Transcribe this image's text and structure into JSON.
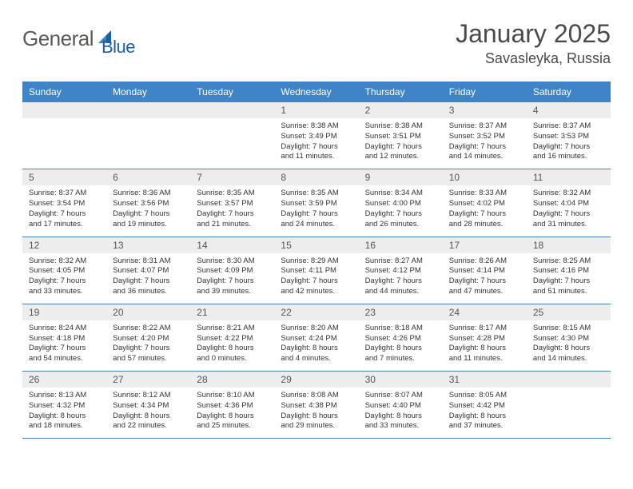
{
  "brand": {
    "name_a": "General",
    "name_b": "Blue"
  },
  "title": "January 2025",
  "location": "Savasleyka, Russia",
  "colors": {
    "header_bg": "#3e84c6",
    "header_text": "#ffffff",
    "daynum_bg": "#ededed",
    "rule": "#3e84c6",
    "logo_gray": "#595959",
    "logo_blue": "#1f5da8"
  },
  "day_labels": [
    "Sunday",
    "Monday",
    "Tuesday",
    "Wednesday",
    "Thursday",
    "Friday",
    "Saturday"
  ],
  "weeks": [
    [
      {
        "n": "",
        "sr": "",
        "ss": "",
        "dl": ""
      },
      {
        "n": "",
        "sr": "",
        "ss": "",
        "dl": ""
      },
      {
        "n": "",
        "sr": "",
        "ss": "",
        "dl": ""
      },
      {
        "n": "1",
        "sr": "Sunrise: 8:38 AM",
        "ss": "Sunset: 3:49 PM",
        "dl": "Daylight: 7 hours and 11 minutes."
      },
      {
        "n": "2",
        "sr": "Sunrise: 8:38 AM",
        "ss": "Sunset: 3:51 PM",
        "dl": "Daylight: 7 hours and 12 minutes."
      },
      {
        "n": "3",
        "sr": "Sunrise: 8:37 AM",
        "ss": "Sunset: 3:52 PM",
        "dl": "Daylight: 7 hours and 14 minutes."
      },
      {
        "n": "4",
        "sr": "Sunrise: 8:37 AM",
        "ss": "Sunset: 3:53 PM",
        "dl": "Daylight: 7 hours and 16 minutes."
      }
    ],
    [
      {
        "n": "5",
        "sr": "Sunrise: 8:37 AM",
        "ss": "Sunset: 3:54 PM",
        "dl": "Daylight: 7 hours and 17 minutes."
      },
      {
        "n": "6",
        "sr": "Sunrise: 8:36 AM",
        "ss": "Sunset: 3:56 PM",
        "dl": "Daylight: 7 hours and 19 minutes."
      },
      {
        "n": "7",
        "sr": "Sunrise: 8:35 AM",
        "ss": "Sunset: 3:57 PM",
        "dl": "Daylight: 7 hours and 21 minutes."
      },
      {
        "n": "8",
        "sr": "Sunrise: 8:35 AM",
        "ss": "Sunset: 3:59 PM",
        "dl": "Daylight: 7 hours and 24 minutes."
      },
      {
        "n": "9",
        "sr": "Sunrise: 8:34 AM",
        "ss": "Sunset: 4:00 PM",
        "dl": "Daylight: 7 hours and 26 minutes."
      },
      {
        "n": "10",
        "sr": "Sunrise: 8:33 AM",
        "ss": "Sunset: 4:02 PM",
        "dl": "Daylight: 7 hours and 28 minutes."
      },
      {
        "n": "11",
        "sr": "Sunrise: 8:32 AM",
        "ss": "Sunset: 4:04 PM",
        "dl": "Daylight: 7 hours and 31 minutes."
      }
    ],
    [
      {
        "n": "12",
        "sr": "Sunrise: 8:32 AM",
        "ss": "Sunset: 4:05 PM",
        "dl": "Daylight: 7 hours and 33 minutes."
      },
      {
        "n": "13",
        "sr": "Sunrise: 8:31 AM",
        "ss": "Sunset: 4:07 PM",
        "dl": "Daylight: 7 hours and 36 minutes."
      },
      {
        "n": "14",
        "sr": "Sunrise: 8:30 AM",
        "ss": "Sunset: 4:09 PM",
        "dl": "Daylight: 7 hours and 39 minutes."
      },
      {
        "n": "15",
        "sr": "Sunrise: 8:29 AM",
        "ss": "Sunset: 4:11 PM",
        "dl": "Daylight: 7 hours and 42 minutes."
      },
      {
        "n": "16",
        "sr": "Sunrise: 8:27 AM",
        "ss": "Sunset: 4:12 PM",
        "dl": "Daylight: 7 hours and 44 minutes."
      },
      {
        "n": "17",
        "sr": "Sunrise: 8:26 AM",
        "ss": "Sunset: 4:14 PM",
        "dl": "Daylight: 7 hours and 47 minutes."
      },
      {
        "n": "18",
        "sr": "Sunrise: 8:25 AM",
        "ss": "Sunset: 4:16 PM",
        "dl": "Daylight: 7 hours and 51 minutes."
      }
    ],
    [
      {
        "n": "19",
        "sr": "Sunrise: 8:24 AM",
        "ss": "Sunset: 4:18 PM",
        "dl": "Daylight: 7 hours and 54 minutes."
      },
      {
        "n": "20",
        "sr": "Sunrise: 8:22 AM",
        "ss": "Sunset: 4:20 PM",
        "dl": "Daylight: 7 hours and 57 minutes."
      },
      {
        "n": "21",
        "sr": "Sunrise: 8:21 AM",
        "ss": "Sunset: 4:22 PM",
        "dl": "Daylight: 8 hours and 0 minutes."
      },
      {
        "n": "22",
        "sr": "Sunrise: 8:20 AM",
        "ss": "Sunset: 4:24 PM",
        "dl": "Daylight: 8 hours and 4 minutes."
      },
      {
        "n": "23",
        "sr": "Sunrise: 8:18 AM",
        "ss": "Sunset: 4:26 PM",
        "dl": "Daylight: 8 hours and 7 minutes."
      },
      {
        "n": "24",
        "sr": "Sunrise: 8:17 AM",
        "ss": "Sunset: 4:28 PM",
        "dl": "Daylight: 8 hours and 11 minutes."
      },
      {
        "n": "25",
        "sr": "Sunrise: 8:15 AM",
        "ss": "Sunset: 4:30 PM",
        "dl": "Daylight: 8 hours and 14 minutes."
      }
    ],
    [
      {
        "n": "26",
        "sr": "Sunrise: 8:13 AM",
        "ss": "Sunset: 4:32 PM",
        "dl": "Daylight: 8 hours and 18 minutes."
      },
      {
        "n": "27",
        "sr": "Sunrise: 8:12 AM",
        "ss": "Sunset: 4:34 PM",
        "dl": "Daylight: 8 hours and 22 minutes."
      },
      {
        "n": "28",
        "sr": "Sunrise: 8:10 AM",
        "ss": "Sunset: 4:36 PM",
        "dl": "Daylight: 8 hours and 25 minutes."
      },
      {
        "n": "29",
        "sr": "Sunrise: 8:08 AM",
        "ss": "Sunset: 4:38 PM",
        "dl": "Daylight: 8 hours and 29 minutes."
      },
      {
        "n": "30",
        "sr": "Sunrise: 8:07 AM",
        "ss": "Sunset: 4:40 PM",
        "dl": "Daylight: 8 hours and 33 minutes."
      },
      {
        "n": "31",
        "sr": "Sunrise: 8:05 AM",
        "ss": "Sunset: 4:42 PM",
        "dl": "Daylight: 8 hours and 37 minutes."
      },
      {
        "n": "",
        "sr": "",
        "ss": "",
        "dl": ""
      }
    ]
  ]
}
